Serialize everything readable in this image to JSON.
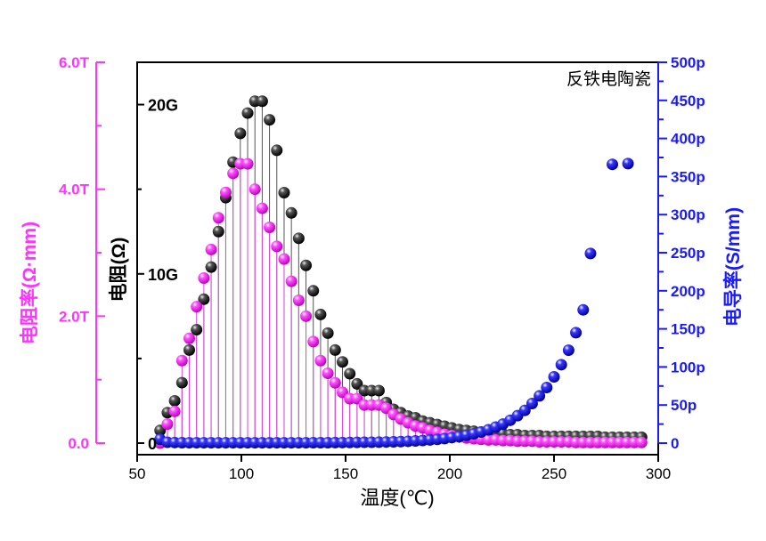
{
  "chart_data": {
    "type": "scatter",
    "title": "",
    "annotation": "反铁电陶瓷",
    "xlabel": "温度(℃)",
    "xlim": [
      50,
      300
    ],
    "x_ticks": [
      "50",
      "100",
      "150",
      "200",
      "250",
      "300"
    ],
    "x_tick_values": [
      50,
      100,
      150,
      200,
      250,
      300
    ],
    "axes": {
      "left_outer": {
        "label": "电阻率(Ω·mm)",
        "color": "#ff33ff",
        "lim": [
          0,
          6.0
        ],
        "ticks": [
          "0.0",
          "2.0T",
          "4.0T",
          "6.0T"
        ],
        "tick_values": [
          0,
          2,
          4,
          6
        ]
      },
      "left_inner": {
        "label": "电阻(Ω)",
        "color": "#000000",
        "lim": [
          0,
          22.5
        ],
        "ticks": [
          "0",
          "10G",
          "20G"
        ],
        "tick_values": [
          0,
          10,
          20
        ]
      },
      "right": {
        "label": "电导率(S/mm)",
        "color": "#1a1aff",
        "lim": [
          0,
          500
        ],
        "ticks": [
          "0",
          "50p",
          "100p",
          "150p",
          "200p",
          "250p",
          "300p",
          "350p",
          "400p",
          "450p",
          "500p"
        ],
        "tick_values": [
          0,
          50,
          100,
          150,
          200,
          250,
          300,
          350,
          400,
          450,
          500
        ]
      }
    },
    "series": [
      {
        "axis": "left_inner",
        "color": "#000000",
        "line_color": "#555555",
        "x": [
          61,
          64.5,
          68,
          71.5,
          75,
          78.5,
          82,
          85.5,
          89,
          92.5,
          96,
          99.5,
          103,
          106.5,
          110,
          113.5,
          117,
          120.5,
          124,
          127.5,
          131,
          134.5,
          138,
          141.5,
          145,
          148.5,
          152,
          155.5,
          159,
          162.5,
          166,
          169.5,
          173,
          176.5,
          180,
          183.5,
          187,
          190.5,
          194,
          197.5,
          201,
          204.5,
          208,
          211.5,
          215,
          218.5,
          222,
          225.5,
          229,
          232.5,
          236,
          239.5,
          243,
          246.5,
          250,
          253.5,
          257,
          260.5,
          264,
          267.5,
          271,
          274.5,
          278,
          281.5,
          285,
          288.5,
          292
        ],
        "values": [
          0.75,
          1.8,
          2.5,
          3.57,
          5.5,
          6.7,
          8.5,
          10.4,
          12.5,
          14.5,
          16.6,
          18.3,
          19.5,
          20.2,
          20.2,
          19.1,
          17.3,
          14.8,
          13.6,
          12.1,
          10.5,
          9.0,
          7.6,
          6.5,
          5.5,
          4.8,
          4.1,
          3.5,
          3.1,
          3.1,
          3.1,
          2.4,
          2.0,
          1.8,
          1.6,
          1.5,
          1.3,
          1.2,
          1.1,
          1.0,
          0.9,
          0.8,
          0.75,
          0.7,
          0.65,
          0.6,
          0.6,
          0.55,
          0.5,
          0.5,
          0.45,
          0.45,
          0.45,
          0.4,
          0.4,
          0.4,
          0.4,
          0.4,
          0.4,
          0.4,
          0.4,
          0.35,
          0.35,
          0.35,
          0.35,
          0.35,
          0.35
        ]
      },
      {
        "axis": "left_outer",
        "color": "#ff33ff",
        "line_color": "#e24ae2",
        "x": [
          61,
          64.5,
          68,
          71.5,
          75,
          78.5,
          82,
          85.5,
          89,
          92.5,
          96,
          99.5,
          103,
          106.5,
          110,
          113.5,
          117,
          120.5,
          124,
          127.5,
          131,
          134.5,
          138,
          141.5,
          145,
          148.5,
          152,
          155.5,
          159,
          162.5,
          166,
          169.5,
          173,
          176.5,
          180,
          183.5,
          187,
          190.5,
          194,
          197.5,
          201,
          204.5,
          208,
          211.5,
          215,
          218.5,
          222,
          225.5,
          229,
          232.5,
          236,
          239.5,
          243,
          246.5,
          250,
          253.5,
          257,
          260.5,
          264,
          267.5,
          271,
          274.5,
          278,
          281.5,
          285,
          288.5,
          292
        ],
        "values": [
          0.0,
          0.3,
          0.5,
          1.3,
          1.65,
          2.15,
          2.6,
          3.05,
          3.55,
          3.95,
          4.25,
          4.4,
          4.4,
          4.0,
          3.7,
          3.4,
          3.1,
          2.9,
          2.55,
          2.25,
          2.0,
          1.6,
          1.3,
          1.1,
          0.95,
          0.8,
          0.7,
          0.7,
          0.6,
          0.6,
          0.6,
          0.55,
          0.45,
          0.38,
          0.32,
          0.27,
          0.24,
          0.2,
          0.17,
          0.14,
          0.12,
          0.1,
          0.08,
          0.07,
          0.06,
          0.05,
          0.05,
          0.04,
          0.04,
          0.03,
          0.03,
          0.03,
          0.02,
          0.02,
          0.02,
          0.02,
          0.02,
          0.01,
          0.01,
          0.01,
          0.01,
          0.01,
          0.01,
          0.01,
          0.01,
          0.01,
          0.01
        ]
      },
      {
        "axis": "right",
        "color": "#1a1aff",
        "x": [
          61,
          64.5,
          68,
          71.5,
          75,
          78.5,
          82,
          85.5,
          89,
          92.5,
          96,
          99.5,
          103,
          106.5,
          110,
          113.5,
          117,
          120.5,
          124,
          127.5,
          131,
          134.5,
          138,
          141.5,
          145,
          148.5,
          152,
          155.5,
          159,
          162.5,
          166,
          169.5,
          173,
          176.5,
          180,
          183.5,
          187,
          190.5,
          194,
          197.5,
          201,
          204.5,
          208,
          211.5,
          215,
          218.5,
          222,
          225.5,
          229,
          232.5,
          236,
          239.5,
          243,
          246.5,
          250,
          253.5,
          257,
          260.5,
          264,
          267.5,
          278,
          285.5
        ],
        "values": [
          5,
          1.2,
          0.8,
          0.6,
          0.5,
          0.5,
          0.5,
          0.5,
          0.5,
          0.5,
          0.5,
          0.5,
          0.5,
          0.5,
          0.5,
          0.5,
          0.5,
          0.5,
          0.5,
          0.5,
          0.5,
          0.6,
          0.6,
          0.6,
          0.7,
          0.8,
          0.9,
          1.0,
          1.1,
          1.2,
          1.3,
          1.5,
          1.7,
          2.0,
          2.4,
          2.9,
          3.5,
          4.2,
          5.0,
          6.0,
          7.2,
          8.6,
          10.2,
          12.2,
          14.6,
          17.5,
          21,
          25,
          30,
          36,
          43,
          52,
          62,
          73,
          87,
          103,
          122,
          145,
          175,
          249,
          366,
          367
        ]
      }
    ]
  }
}
